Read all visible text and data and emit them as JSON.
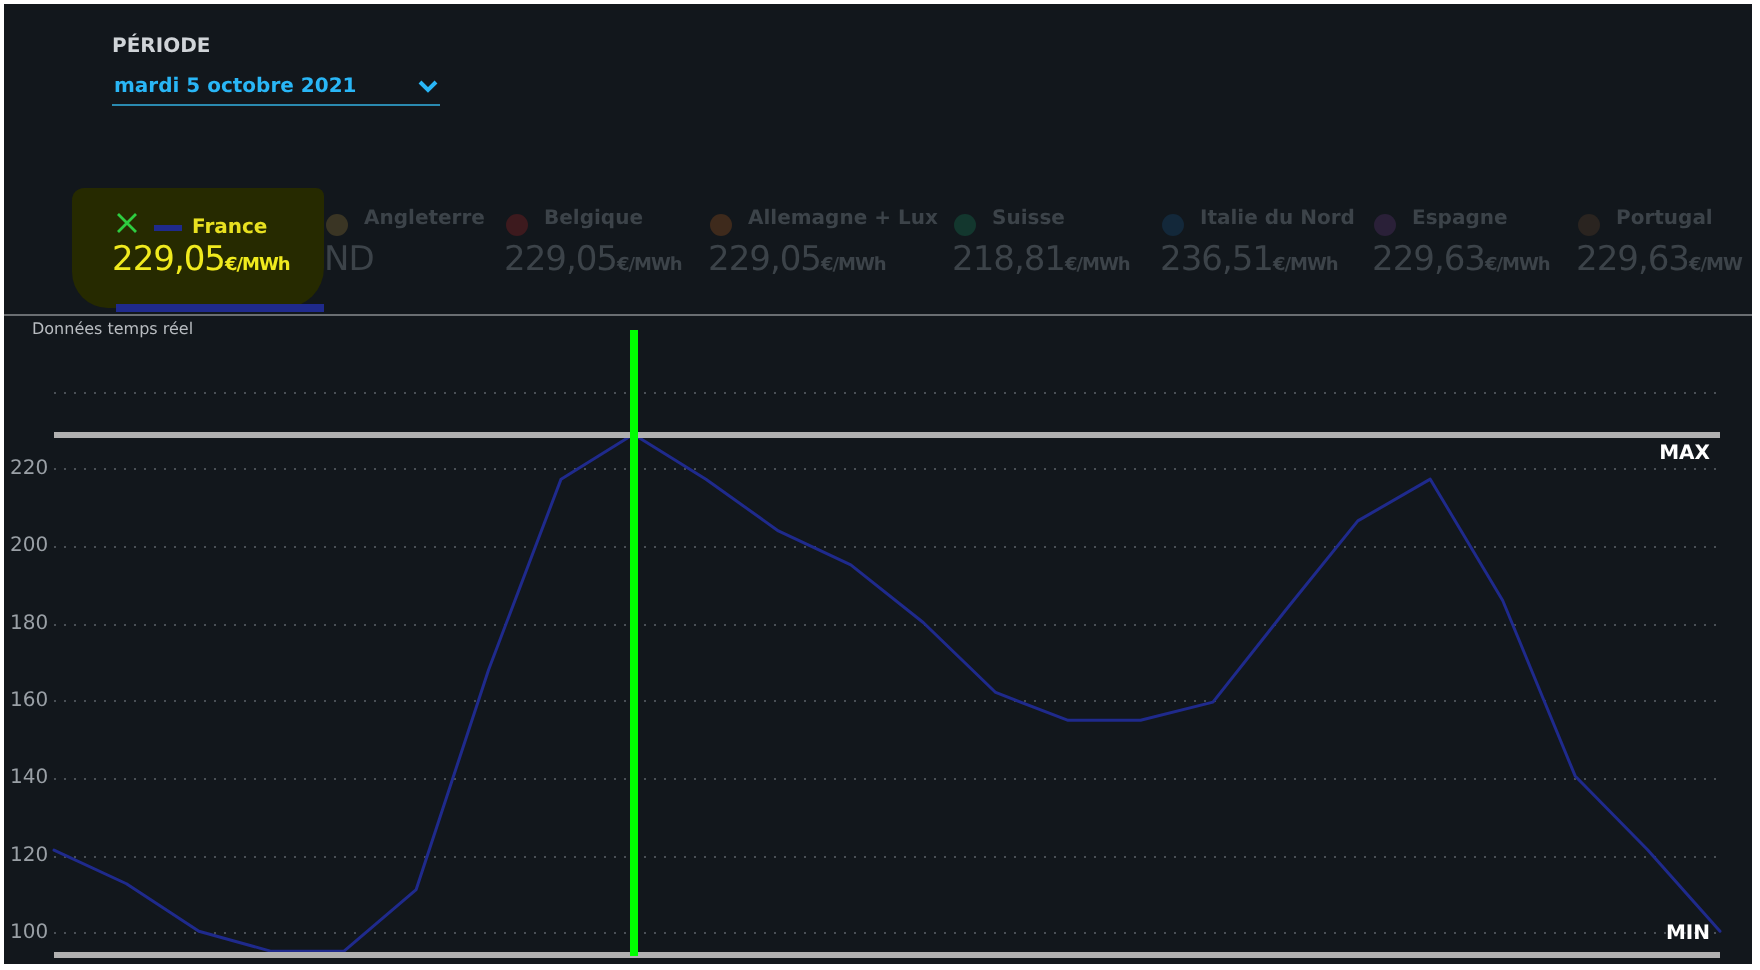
{
  "chart_data": {
    "type": "line",
    "categories": [
      null,
      null,
      null,
      null,
      null,
      null,
      null,
      null,
      null,
      null,
      null,
      null,
      null,
      null,
      null,
      null,
      null,
      null,
      null,
      null,
      null,
      null,
      null,
      null
    ],
    "series": [
      {
        "name": "France",
        "color": "#1f2a8c",
        "values": [
          121.4,
          112.7,
          100.4,
          95.2,
          95.2,
          111.2,
          168.1,
          217.4,
          229,
          217.4,
          204,
          195.2,
          180.3,
          162.2,
          155,
          155,
          159.7,
          183.4,
          206.6,
          217.4,
          186,
          140.6,
          121.5,
          100.4
        ]
      }
    ],
    "ylim": [
      94,
      256
    ],
    "yticks": [
      100,
      120,
      140,
      160,
      180,
      200,
      220,
      {
        "value": 240,
        "label": null
      }
    ],
    "tick_labels": "y",
    "grid": "y",
    "legend": "top left",
    "marker": "none",
    "line_style": "solid",
    "ref_lines": [
      {
        "axis": "y",
        "value": 229.05,
        "label": "MAX",
        "color": "#b0b0b0"
      },
      {
        "axis": "y",
        "value": 94.5,
        "label": "MIN",
        "color": "#b0b0b0"
      }
    ],
    "annotations": [
      "PÉRIODE",
      "mardi 5 octobre 2021",
      "229,05€/MWh",
      "Angleterre",
      "ND",
      "Belgique",
      "229,05€/MWh",
      "Allemagne + Lux",
      "229,05€/MWh",
      "Suisse",
      "218,81€/MWh",
      "Italie du Nord",
      "236,51€/MWh",
      "Espagne",
      "229,63€/MWh",
      "Portugal",
      "229,63€/MW",
      "Données temps réel"
    ]
  }
}
